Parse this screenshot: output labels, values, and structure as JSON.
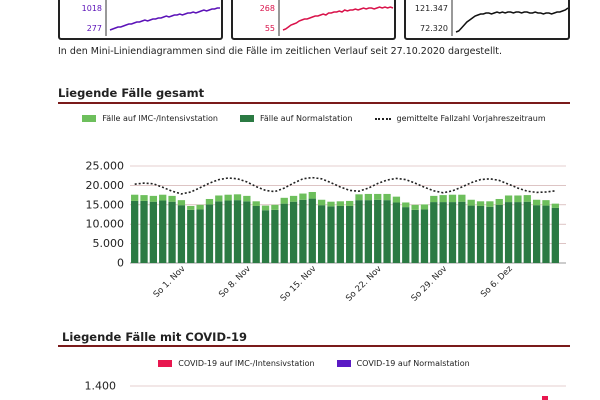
{
  "mini_cards": [
    {
      "top_value": "1018",
      "bottom_value": "277",
      "color": "#5b12b8",
      "border": "#5b12b8"
    },
    {
      "top_value": "268",
      "bottom_value": "55",
      "color": "#d9124a",
      "border": "#4fae4f"
    },
    {
      "top_value": "121.347",
      "bottom_value": "72.320",
      "color": "#111111",
      "border": "#1a3f8c"
    }
  ],
  "caption": "In den Mini-Liniendiagrammen sind die Fälle im zeitlichen Verlauf seit 27.10.2020 dargestellt.",
  "section1": {
    "title": "Liegende Fälle gesamt",
    "legend": {
      "imc": "Fälle auf IMC-/Intensivstation",
      "normal": "Fälle auf Normalstation",
      "prev": "gemittelte Fallzahl Vorjahreszeitraum"
    }
  },
  "section2": {
    "title": "Liegende Fälle mit COVID-19",
    "legend": {
      "imc": "COVID-19 auf IMC-/Intensivstation",
      "normal": "COVID-19 auf Normalstation"
    },
    "y_tick": "1.400"
  },
  "colors": {
    "imc": "#6dbf5c",
    "normal": "#2b7a43",
    "covid_imc": "#e8174f",
    "covid_normal": "#5a1ac4",
    "grid": "#c9a0a0",
    "rule": "#7a1a1a"
  },
  "chart_data": [
    {
      "type": "bar",
      "title": "Liegende Fälle gesamt",
      "stacked": true,
      "x_tick_labels": [
        "So 1. Nov",
        "So 8. Nov",
        "So 15. Nov",
        "So 22. Nov",
        "So 29. Nov",
        "So 6. Dez"
      ],
      "y_ticks": [
        "0",
        "5.000",
        "10.000",
        "15.000",
        "20.000",
        "25.000"
      ],
      "ylim": [
        0,
        25000
      ],
      "grid": true,
      "legend_position": "top",
      "series": [
        {
          "name": "Fälle auf Normalstation",
          "values": [
            16000,
            16000,
            15800,
            16100,
            15800,
            14900,
            13700,
            13800,
            15100,
            15900,
            16100,
            16200,
            15900,
            14700,
            13600,
            13700,
            15300,
            15800,
            16300,
            16600,
            14900,
            14600,
            14700,
            14700,
            16200,
            16200,
            16300,
            16200,
            15600,
            14400,
            13700,
            13800,
            15700,
            15700,
            15700,
            15800,
            14800,
            14700,
            14500,
            15000,
            15700,
            15700,
            15800,
            14900,
            14800,
            14200
          ]
        },
        {
          "name": "Fälle auf IMC-/Intensivstation",
          "values": [
            1600,
            1500,
            1500,
            1500,
            1500,
            1300,
            1000,
            1200,
            1400,
            1500,
            1500,
            1500,
            1400,
            1200,
            1200,
            1300,
            1500,
            1500,
            1600,
            1700,
            1400,
            1200,
            1200,
            1300,
            1500,
            1600,
            1500,
            1600,
            1500,
            1200,
            1300,
            1300,
            1600,
            1800,
            1900,
            1800,
            1500,
            1200,
            1400,
            1500,
            1700,
            1700,
            1700,
            1400,
            1400,
            1100
          ]
        },
        {
          "name": "gemittelte Fallzahl Vorjahreszeitraum",
          "type": "line",
          "values": [
            20300,
            20600,
            20400,
            19500,
            18500,
            17800,
            18300,
            19400,
            20600,
            21500,
            21900,
            21700,
            20900,
            19700,
            18700,
            18400,
            19300,
            20600,
            21700,
            22000,
            21700,
            20700,
            19600,
            18700,
            18500,
            19300,
            20500,
            21400,
            21800,
            21500,
            20600,
            19500,
            18600,
            18100,
            18600,
            19600,
            20700,
            21500,
            21700,
            21300,
            20300,
            19300,
            18500,
            18200,
            18300,
            18600
          ]
        }
      ]
    },
    {
      "type": "bar",
      "title": "Liegende Fälle mit COVID-19",
      "stacked": true,
      "y_ticks": [
        "1.400"
      ],
      "legend_position": "top",
      "series": [
        {
          "name": "COVID-19 auf IMC-/Intensivstation",
          "values": []
        },
        {
          "name": "COVID-19 auf Normalstation",
          "values": []
        }
      ]
    }
  ]
}
